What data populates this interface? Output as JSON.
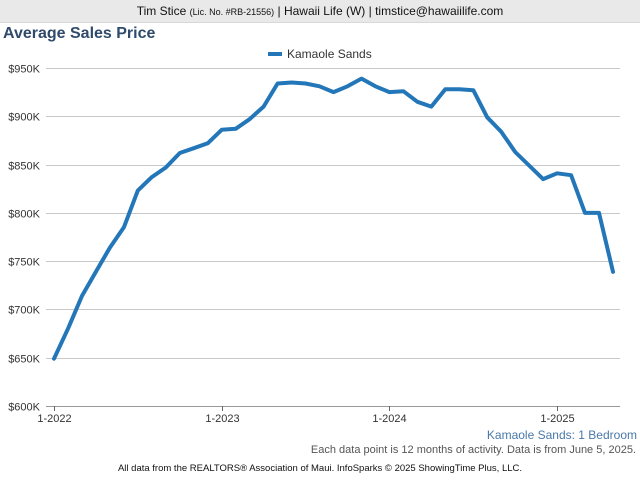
{
  "header": {
    "name": "Tim Stice",
    "license": "(Lic. No. #RB-21556)",
    "rest": "| Hawaii Life (W) | timstice@hawaiilife.com"
  },
  "footnote": "Each data point is 12 months of activity. Data is from June 5, 2025.",
  "footer": "All data from the REALTORS® Association of Maui. InfoSparks © 2025 ShowingTime Plus, LLC.",
  "colors": {
    "series": "#2377b8",
    "title": "#2f4a6b",
    "grid": "#c8c8c8"
  },
  "chart_data": {
    "type": "line",
    "title": "Average Sales Price",
    "subtitle": "Kamaole Sands: 1 Bedroom",
    "legend": "top-center",
    "grid": true,
    "ylim": [
      600000,
      950000
    ],
    "yticks": [
      {
        "value": 600000,
        "label": "$600K"
      },
      {
        "value": 650000,
        "label": "$650K"
      },
      {
        "value": 700000,
        "label": "$700K"
      },
      {
        "value": 750000,
        "label": "$750K"
      },
      {
        "value": 800000,
        "label": "$800K"
      },
      {
        "value": 850000,
        "label": "$850K"
      },
      {
        "value": 900000,
        "label": "$900K"
      },
      {
        "value": 950000,
        "label": "$950K"
      }
    ],
    "xlim": [
      "2022-01",
      "2025-05"
    ],
    "xticks": [
      {
        "value": "2022-01",
        "label": "1-2022"
      },
      {
        "value": "2023-01",
        "label": "1-2023"
      },
      {
        "value": "2024-01",
        "label": "1-2024"
      },
      {
        "value": "2025-01",
        "label": "1-2025"
      }
    ],
    "x": [
      "2022-01",
      "2022-02",
      "2022-03",
      "2022-04",
      "2022-05",
      "2022-06",
      "2022-07",
      "2022-08",
      "2022-09",
      "2022-10",
      "2022-11",
      "2022-12",
      "2023-01",
      "2023-02",
      "2023-03",
      "2023-04",
      "2023-05",
      "2023-06",
      "2023-07",
      "2023-08",
      "2023-09",
      "2023-10",
      "2023-11",
      "2023-12",
      "2024-01",
      "2024-02",
      "2024-03",
      "2024-04",
      "2024-05",
      "2024-06",
      "2024-07",
      "2024-08",
      "2024-09",
      "2024-10",
      "2024-11",
      "2024-12",
      "2025-01",
      "2025-02",
      "2025-03",
      "2025-04",
      "2025-05"
    ],
    "series": [
      {
        "name": "Kamaole Sands",
        "values": [
          649000,
          680000,
          714000,
          739000,
          764000,
          785000,
          823000,
          837000,
          847000,
          862000,
          867000,
          872000,
          886000,
          887000,
          897000,
          910000,
          934000,
          935000,
          934000,
          931000,
          925000,
          931000,
          939000,
          931000,
          925000,
          926000,
          915000,
          910000,
          928000,
          928000,
          927000,
          899000,
          884000,
          863000,
          849000,
          835000,
          841000,
          839000,
          800000,
          800000,
          739000
        ]
      }
    ]
  }
}
